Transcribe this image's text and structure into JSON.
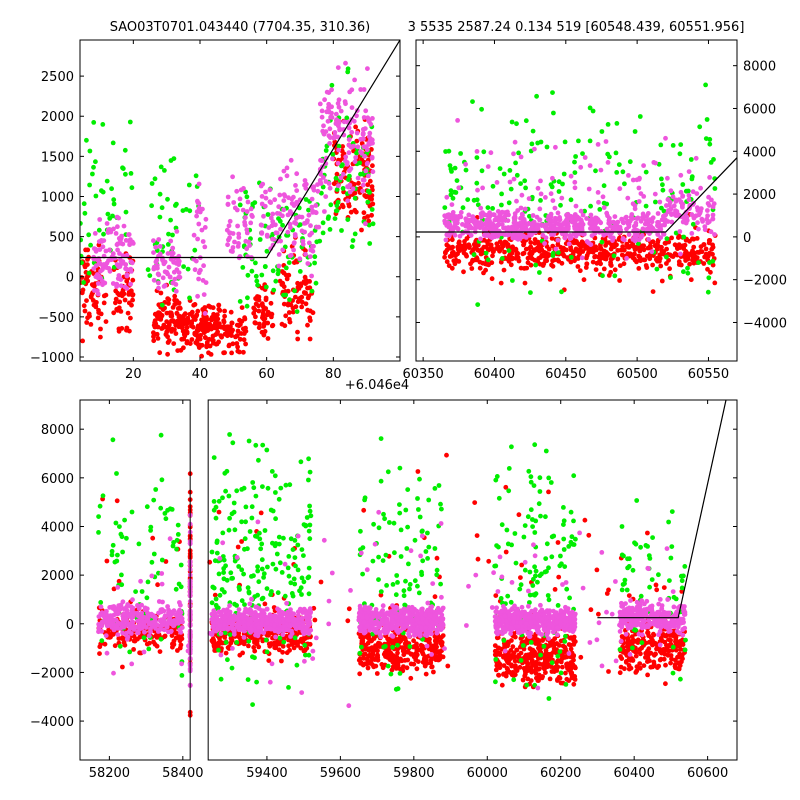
{
  "chart_data": [
    {
      "type": "scatter",
      "title": "SAO03T0701.043440 (7704.35, 310.36)",
      "xlabel": "",
      "ylabel": "",
      "xlim": [
        4,
        100
      ],
      "ylim": [
        -1050,
        2950
      ],
      "x_offset_text": "",
      "yaxis_side": "left",
      "xticks": [
        20,
        40,
        60,
        80
      ],
      "yticks": [
        -1000,
        -500,
        0,
        500,
        1000,
        1500,
        2000,
        2500
      ],
      "grid": false,
      "line": {
        "x": [
          4,
          60,
          100
        ],
        "y": [
          240,
          240,
          2950
        ]
      },
      "series": [
        {
          "color": "#ff0000",
          "clusters": [
            {
              "x": [
                4,
                12
              ],
              "y": [
                -1000,
                600
              ],
              "n": 70
            },
            {
              "x": [
                14,
                20
              ],
              "y": [
                -900,
                500
              ],
              "n": 50
            },
            {
              "x": [
                26,
                34
              ],
              "y": [
                -1050,
                0
              ],
              "n": 90
            },
            {
              "x": [
                34,
                46
              ],
              "y": [
                -1050,
                -200
              ],
              "n": 160
            },
            {
              "x": [
                46,
                54
              ],
              "y": [
                -1050,
                -300
              ],
              "n": 60
            },
            {
              "x": [
                56,
                62
              ],
              "y": [
                -900,
                0
              ],
              "n": 50
            },
            {
              "x": [
                64,
                74
              ],
              "y": [
                -1000,
                600
              ],
              "n": 80
            },
            {
              "x": [
                80,
                92
              ],
              "y": [
                200,
                2200
              ],
              "n": 120
            }
          ]
        },
        {
          "color": "#00ee00",
          "clusters": [
            {
              "x": [
                4,
                20
              ],
              "y": [
                -1000,
                2500
              ],
              "n": 50
            },
            {
              "x": [
                24,
                40
              ],
              "y": [
                -1000,
                2200
              ],
              "n": 45
            },
            {
              "x": [
                52,
                76
              ],
              "y": [
                -800,
                1500
              ],
              "n": 90
            },
            {
              "x": [
                76,
                92
              ],
              "y": [
                -400,
                2800
              ],
              "n": 70
            }
          ]
        },
        {
          "color": "#ee55dd",
          "clusters": [
            {
              "x": [
                8,
                20
              ],
              "y": [
                -400,
                900
              ],
              "n": 110
            },
            {
              "x": [
                26,
                34
              ],
              "y": [
                -400,
                800
              ],
              "n": 60
            },
            {
              "x": [
                38,
                42
              ],
              "y": [
                -800,
                1600
              ],
              "n": 30
            },
            {
              "x": [
                48,
                56
              ],
              "y": [
                -300,
                1500
              ],
              "n": 50
            },
            {
              "x": [
                58,
                76
              ],
              "y": [
                -200,
                1700
              ],
              "n": 120
            },
            {
              "x": [
                76,
                92
              ],
              "y": [
                500,
                2900
              ],
              "n": 150
            }
          ]
        }
      ]
    },
    {
      "type": "scatter",
      "title": "3 5535 2587.24 0.134 519 [60548.439, 60551.956]",
      "xlabel": "",
      "ylabel": "",
      "xlim": [
        60345,
        60570
      ],
      "ylim": [
        -5800,
        9200
      ],
      "x_offset_text": "",
      "yaxis_side": "right",
      "xticks": [
        60350,
        60400,
        60450,
        60500,
        60550
      ],
      "yticks": [
        -4000,
        -2000,
        0,
        2000,
        4000,
        6000,
        8000
      ],
      "grid": false,
      "line": {
        "x": [
          60345,
          60520,
          60570
        ],
        "y": [
          230,
          230,
          3700
        ]
      },
      "series": [
        {
          "color": "#ff0000",
          "clusters": [
            {
              "x": [
                60365,
                60555
              ],
              "y": [
                -1800,
                500
              ],
              "n": 500
            },
            {
              "x": [
                60370,
                60555
              ],
              "y": [
                -3500,
                1500
              ],
              "n": 80
            }
          ]
        },
        {
          "color": "#00ee00",
          "clusters": [
            {
              "x": [
                60365,
                60555
              ],
              "y": [
                -4500,
                8500
              ],
              "n": 200
            }
          ]
        },
        {
          "color": "#ee55dd",
          "clusters": [
            {
              "x": [
                60365,
                60520
              ],
              "y": [
                -500,
                1500
              ],
              "n": 500
            },
            {
              "x": [
                60520,
                60555
              ],
              "y": [
                0,
                2400
              ],
              "n": 80
            },
            {
              "x": [
                60365,
                60555
              ],
              "y": [
                -2000,
                6000
              ],
              "n": 120
            }
          ]
        }
      ]
    },
    {
      "type": "scatter",
      "title": "",
      "xlabel": "",
      "ylabel": "",
      "xlim": [
        58120,
        60680
      ],
      "ylim": [
        -5600,
        9200
      ],
      "x_offset_text": "+6.046e4",
      "yaxis_side": "left",
      "axis_break": {
        "x_from": 58420,
        "x_to": 59240
      },
      "xticks_left": [
        58200,
        58400
      ],
      "xticks": [
        59400,
        59600,
        59800,
        60000,
        60200,
        60400,
        60600
      ],
      "yticks": [
        -4000,
        -2000,
        0,
        2000,
        4000,
        6000,
        8000
      ],
      "grid": false,
      "line": {
        "x": [
          60300,
          60520,
          60650
        ],
        "y": [
          250,
          250,
          9200
        ]
      },
      "series": [
        {
          "color": "#ff0000",
          "clusters": [
            {
              "x": [
                58170,
                58400
              ],
              "y": [
                -1400,
                800
              ],
              "n": 180
            },
            {
              "x": [
                59250,
                59520
              ],
              "y": [
                -1600,
                700
              ],
              "n": 320
            },
            {
              "x": [
                59650,
                59880
              ],
              "y": [
                -2500,
                500
              ],
              "n": 320
            },
            {
              "x": [
                60020,
                60240
              ],
              "y": [
                -3000,
                400
              ],
              "n": 340
            },
            {
              "x": [
                60360,
                60540
              ],
              "y": [
                -2400,
                600
              ],
              "n": 220
            },
            {
              "x": [
                58170,
                60540
              ],
              "y": [
                -5000,
                8500
              ],
              "n": 160
            }
          ]
        },
        {
          "color": "#00ee00",
          "clusters": [
            {
              "x": [
                58170,
                58400
              ],
              "y": [
                -5000,
                8500
              ],
              "n": 80
            },
            {
              "x": [
                59250,
                59520
              ],
              "y": [
                -4000,
                9000
              ],
              "n": 220
            },
            {
              "x": [
                59650,
                59880
              ],
              "y": [
                -5000,
                9000
              ],
              "n": 110
            },
            {
              "x": [
                60020,
                60240
              ],
              "y": [
                -4500,
                9000
              ],
              "n": 130
            },
            {
              "x": [
                60360,
                60540
              ],
              "y": [
                -4500,
                7000
              ],
              "n": 60
            }
          ]
        },
        {
          "color": "#ee55dd",
          "clusters": [
            {
              "x": [
                58170,
                58400
              ],
              "y": [
                -700,
                1100
              ],
              "n": 260
            },
            {
              "x": [
                59250,
                59520
              ],
              "y": [
                -700,
                900
              ],
              "n": 420
            },
            {
              "x": [
                59650,
                59880
              ],
              "y": [
                -700,
                1000
              ],
              "n": 420
            },
            {
              "x": [
                60020,
                60240
              ],
              "y": [
                -700,
                900
              ],
              "n": 420
            },
            {
              "x": [
                60360,
                60540
              ],
              "y": [
                -700,
                1200
              ],
              "n": 260
            },
            {
              "x": [
                58170,
                60540
              ],
              "y": [
                -4000,
                6000
              ],
              "n": 180
            }
          ]
        }
      ]
    }
  ]
}
